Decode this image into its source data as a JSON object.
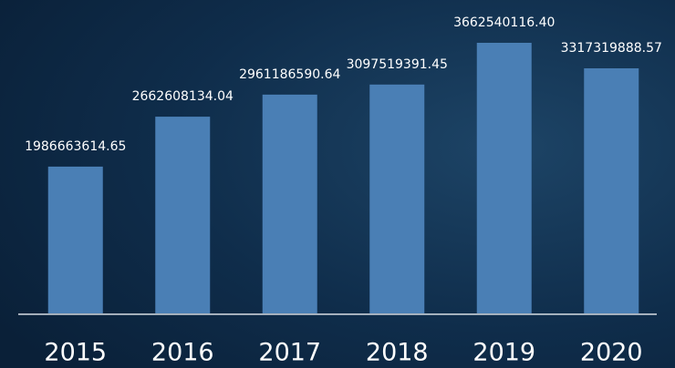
{
  "chart_data": {
    "type": "bar",
    "categories": [
      "2015",
      "2016",
      "2017",
      "2018",
      "2019",
      "2020"
    ],
    "values": [
      1986663614.65,
      2662608134.04,
      2961186590.64,
      3097519391.45,
      3662540116.4,
      3317319888.57
    ],
    "value_labels": [
      "1986663614.65",
      "2662608134.04",
      "2961186590.64",
      "3097519391.45",
      "3662540116.40",
      "3317319888.57"
    ],
    "color": "#4a7fb5"
  }
}
